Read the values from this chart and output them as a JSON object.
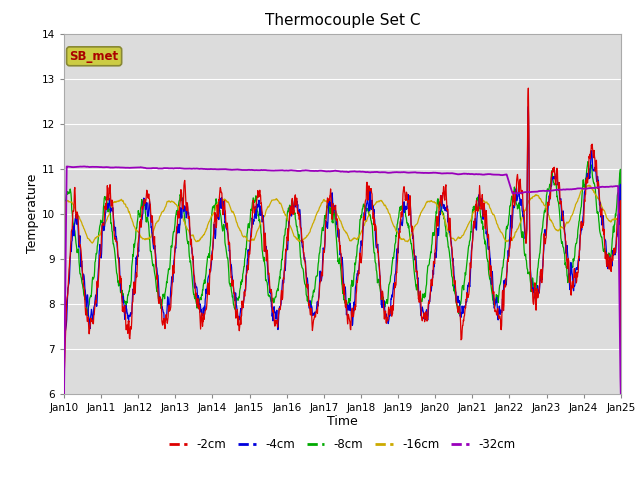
{
  "title": "Thermocouple Set C",
  "xlabel": "Time",
  "ylabel": "Temperature",
  "ylim": [
    6.0,
    14.0
  ],
  "yticks": [
    6.0,
    7.0,
    8.0,
    9.0,
    10.0,
    11.0,
    12.0,
    13.0,
    14.0
  ],
  "colors": {
    "-2cm": "#dd0000",
    "-4cm": "#0000dd",
    "-8cm": "#00aa00",
    "-16cm": "#ccaa00",
    "-32cm": "#9900bb"
  },
  "legend_label": "SB_met",
  "legend_box_facecolor": "#cccc44",
  "legend_text_color": "#aa0000",
  "legend_edge_color": "#888833",
  "background_color": "#dcdcdc",
  "xtick_labels": [
    "Jan 10",
    "Jan 11",
    "Jan 12",
    "Jan 13",
    "Jan 14",
    "Jan 15",
    "Jan 16",
    "Jan 17",
    "Jan 18",
    "Jan 19",
    "Jan 20",
    "Jan 21",
    "Jan 22",
    "Jan 23",
    "Jan 24",
    "Jan 25"
  ],
  "series_labels": [
    "-2cm",
    "-4cm",
    "-8cm",
    "-16cm",
    "-32cm"
  ],
  "grid_color": "#ffffff",
  "figure_facecolor": "#ffffff"
}
